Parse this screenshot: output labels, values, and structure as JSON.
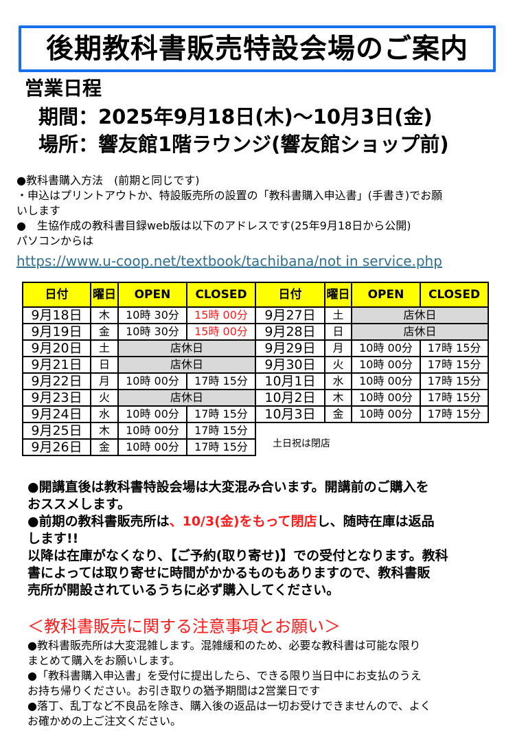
{
  "title": "後期教科書販売特設会場のご案内",
  "schedule": {
    "heading": "営業日程",
    "period": "期間：2025年9月18日(木)～10月3日(金)",
    "place": "場所：響友館1階ラウンジ(響友館ショップ前)"
  },
  "info": {
    "line1": "●教科書購入方法　(前期と同じです)",
    "line2": "・申込はプリントアウトか、特設販売所の設置の「教科書購入申込書」(手書き)でお願",
    "line3": "いします",
    "line4": "●　生協作成の教科書目録web版は以下のアドレスです(25年9月18日から公開)",
    "line5": "パソコンからは",
    "url": "https://www.u-coop.net/textbook/tachibana/not in service.php"
  },
  "table": {
    "headers": [
      "日付",
      "曜日",
      "OPEN",
      "CLOSED"
    ],
    "holiday_label": "店休日",
    "left": [
      {
        "date": "9月18日",
        "day": "木",
        "open": "10時 30分",
        "close": "15時 00分",
        "early": true
      },
      {
        "date": "9月19日",
        "day": "金",
        "open": "10時 30分",
        "close": "15時 00分",
        "early": true
      },
      {
        "date": "9月20日",
        "day": "土",
        "closed": true
      },
      {
        "date": "9月21日",
        "day": "日",
        "closed": true
      },
      {
        "date": "9月22日",
        "day": "月",
        "open": "10時 00分",
        "close": "17時 15分"
      },
      {
        "date": "9月23日",
        "day": "火",
        "closed": true
      },
      {
        "date": "9月24日",
        "day": "水",
        "open": "10時 00分",
        "close": "17時 15分"
      },
      {
        "date": "9月25日",
        "day": "木",
        "open": "10時 00分",
        "close": "17時 15分"
      },
      {
        "date": "9月26日",
        "day": "金",
        "open": "10時 00分",
        "close": "17時 15分"
      }
    ],
    "right": [
      {
        "date": "9月27日",
        "day": "土",
        "closed": true
      },
      {
        "date": "9月28日",
        "day": "日",
        "closed": true
      },
      {
        "date": "9月29日",
        "day": "月",
        "open": "10時 00分",
        "close": "17時 15分"
      },
      {
        "date": "9月30日",
        "day": "火",
        "open": "10時 00分",
        "close": "17時 15分"
      },
      {
        "date": "10月1日",
        "day": "水",
        "open": "10時 00分",
        "close": "17時 15分"
      },
      {
        "date": "10月2日",
        "day": "木",
        "open": "10時 00分",
        "close": "17時 15分"
      },
      {
        "date": "10月3日",
        "day": "金",
        "open": "10時 00分",
        "close": "17時 15分"
      }
    ],
    "note": "土日祝は閉店"
  },
  "notice": {
    "p1a": "●開講直後は教科書特設会場は大変混み合います。開講前のご購入を",
    "p1b": "おススメします。",
    "p2a_pre": "●前期の教科書販売所は",
    "p2a_red": "、10/3(金)をもって閉店",
    "p2a_post": "し、随時在庫は返品",
    "p2b": "します!!",
    "p3a": "以降は在庫がなくなり、【ご予約(取り寄せ)】での受付となります。教科",
    "p3b": "書によっては取り寄せに時間がかかるものもありますので、教科書販",
    "p3c": "売所が開設されているうちに必ず購入してください。"
  },
  "cautions": {
    "heading": "＜教科書販売に関する注意事項とお願い＞",
    "lines": [
      "●教科書販売所は大変混雑します。混雑緩和のため、必要な教科書は可能な限り",
      "まとめて購入をお願いします。",
      "●「教科書購入申込書」を受付に提出したら、できる限り当日中にお支払のうえ",
      "お持ち帰りください。お引き取りの猶予期間は2営業日です",
      "●落丁、乱丁など不良品を除き、購入後の返品は一切お受けできませんので、よく",
      "お確かめの上ご注文ください。"
    ]
  },
  "colors": {
    "title_border": "#1a6ff0",
    "header_bg": "#ffff00",
    "holiday_bg": "#d9d9d9",
    "accent_red": "#ff1a1a",
    "link": "#2f6f8f"
  }
}
